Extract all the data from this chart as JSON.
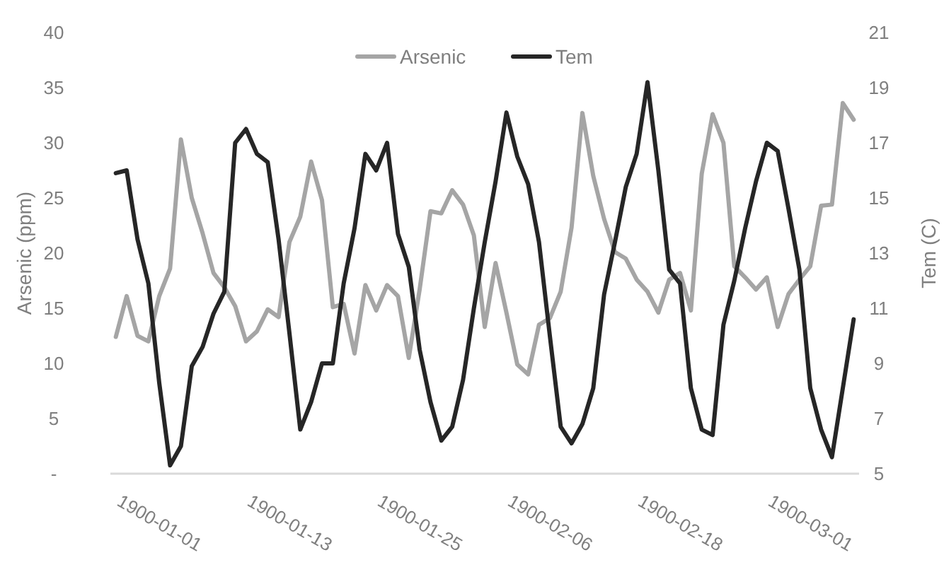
{
  "chart_data": {
    "type": "line",
    "xlabel": null,
    "ylabel": "Arsenic (ppm)",
    "y2label": "Tem (C)",
    "categories": [
      "1900-01-01",
      null,
      null,
      null,
      null,
      null,
      null,
      null,
      null,
      null,
      null,
      null,
      "1900-01-13",
      null,
      null,
      null,
      null,
      null,
      null,
      null,
      null,
      null,
      null,
      null,
      "1900-01-25",
      null,
      null,
      null,
      null,
      null,
      null,
      null,
      null,
      null,
      null,
      null,
      "1900-02-06",
      null,
      null,
      null,
      null,
      null,
      null,
      null,
      null,
      null,
      null,
      null,
      "1900-02-18",
      null,
      null,
      null,
      null,
      null,
      null,
      null,
      null,
      null,
      null,
      null,
      "1900-03-01",
      null,
      null,
      null,
      null,
      null,
      null,
      null,
      null
    ],
    "series": [
      {
        "name": "Arsenic",
        "color": "#a5a5a5",
        "values": [
          12.4,
          16.1,
          12.5,
          12.0,
          16.1,
          18.6,
          30.3,
          25.0,
          21.8,
          18.2,
          16.9,
          15.2,
          12.0,
          12.9,
          14.9,
          14.2,
          21.0,
          23.3,
          28.3,
          24.8,
          15.1,
          15.4,
          10.9,
          17.1,
          14.8,
          17.1,
          16.1,
          10.5,
          16.7,
          23.8,
          23.6,
          25.7,
          24.4,
          21.6,
          13.3,
          19.1,
          14.6,
          9.9,
          9.0,
          13.5,
          14.1,
          16.5,
          22.3,
          32.7,
          27.0,
          23.1,
          20.1,
          19.5,
          17.6,
          16.5,
          14.6,
          17.6,
          18.2,
          14.8,
          27.2,
          32.6,
          30.0,
          18.8,
          17.8,
          16.7,
          17.8,
          13.3,
          16.3,
          17.6,
          18.8,
          24.3,
          24.4,
          33.6,
          32.1
        ]
      },
      {
        "name": "Tem",
        "color": "#262626",
        "axis": "y2",
        "values": [
          15.9,
          16.0,
          13.5,
          11.9,
          8.3,
          5.3,
          6.0,
          8.9,
          9.6,
          10.8,
          11.6,
          17.0,
          17.5,
          16.6,
          16.3,
          13.5,
          10.1,
          6.6,
          7.6,
          9.0,
          9.0,
          11.9,
          13.9,
          16.6,
          16.0,
          17.0,
          13.7,
          12.5,
          9.5,
          7.6,
          6.2,
          6.7,
          8.4,
          11.0,
          13.4,
          15.6,
          18.1,
          16.5,
          15.5,
          13.4,
          10.0,
          6.7,
          6.1,
          6.8,
          8.1,
          11.5,
          13.4,
          15.4,
          16.6,
          19.2,
          16.0,
          12.4,
          11.9,
          8.1,
          6.6,
          6.4,
          10.4,
          12.0,
          13.9,
          15.6,
          17.0,
          16.7,
          14.6,
          12.4,
          8.1,
          6.6,
          5.6,
          8.1,
          10.6
        ]
      }
    ],
    "ylim": [
      0,
      40
    ],
    "yticks": [
      {
        "value": 0,
        "label": "-"
      },
      5,
      10,
      15,
      20,
      25,
      30,
      35,
      40
    ],
    "y2lim": [
      5,
      21
    ],
    "y2ticks": [
      5,
      7,
      9,
      11,
      13,
      15,
      17,
      19,
      21
    ],
    "grid": false,
    "legend": "top",
    "marker": "none",
    "line_style": "solid"
  }
}
